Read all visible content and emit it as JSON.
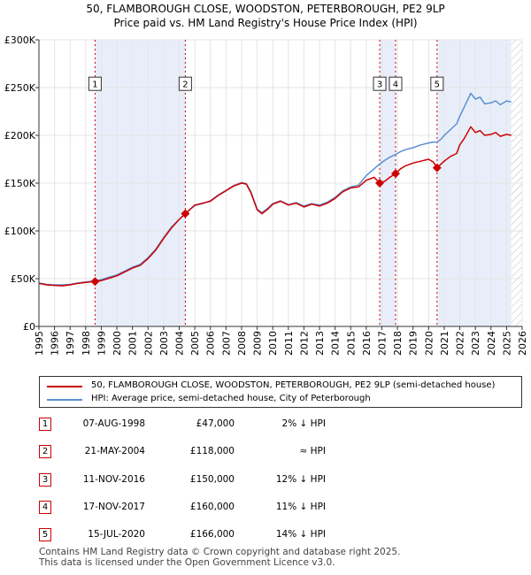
{
  "title_line1": "50, FLAMBOROUGH CLOSE, WOODSTON, PETERBOROUGH, PE2 9LP",
  "title_line2": "Price paid vs. HM Land Registry's House Price Index (HPI)",
  "chart_data": {
    "type": "line",
    "xlim": [
      1995,
      2026
    ],
    "ylim": [
      0,
      300000
    ],
    "y_ticks": [
      0,
      50000,
      100000,
      150000,
      200000,
      250000,
      300000
    ],
    "y_tick_labels": [
      "£0",
      "£50K",
      "£100K",
      "£150K",
      "£200K",
      "£250K",
      "£300K"
    ],
    "x_ticks": [
      1995,
      1996,
      1997,
      1998,
      1999,
      2000,
      2001,
      2002,
      2003,
      2004,
      2005,
      2006,
      2007,
      2008,
      2009,
      2010,
      2011,
      2012,
      2013,
      2014,
      2015,
      2016,
      2017,
      2018,
      2019,
      2020,
      2021,
      2022,
      2023,
      2024,
      2025,
      2026
    ],
    "x_tick_labels": [
      "1995",
      "1996",
      "1997",
      "1998",
      "1999",
      "2000",
      "2001",
      "2002",
      "2003",
      "2004",
      "2005",
      "2006",
      "2007",
      "2008",
      "2009",
      "2010",
      "2011",
      "2012",
      "2013",
      "2014",
      "2015",
      "2016",
      "2017",
      "2018",
      "2019",
      "2020",
      "2021",
      "2022",
      "2023",
      "2024",
      "2025",
      "2026"
    ],
    "colors": {
      "property": "#cc0000",
      "hpi": "#5b8fd4",
      "shade": "#e8eef9",
      "vline": "#cc0000"
    },
    "series": [
      {
        "name": "50, FLAMBOROUGH CLOSE, WOODSTON, PETERBOROUGH, PE2 9LP (semi-detached house)",
        "points": [
          [
            1995.0,
            45000
          ],
          [
            1995.5,
            43500
          ],
          [
            1996.0,
            43000
          ],
          [
            1996.5,
            42500
          ],
          [
            1997.0,
            43500
          ],
          [
            1997.5,
            45000
          ],
          [
            1998.0,
            46000
          ],
          [
            1998.6,
            47000
          ],
          [
            1999.0,
            48000
          ],
          [
            1999.5,
            50500
          ],
          [
            2000.0,
            53000
          ],
          [
            2000.5,
            57000
          ],
          [
            2001.0,
            61000
          ],
          [
            2001.5,
            64000
          ],
          [
            2002.0,
            71000
          ],
          [
            2002.5,
            80000
          ],
          [
            2003.0,
            92000
          ],
          [
            2003.5,
            103000
          ],
          [
            2004.0,
            112000
          ],
          [
            2004.39,
            118000
          ],
          [
            2004.8,
            124000
          ],
          [
            2005.0,
            127000
          ],
          [
            2005.5,
            129000
          ],
          [
            2006.0,
            131000
          ],
          [
            2006.5,
            137000
          ],
          [
            2007.0,
            142000
          ],
          [
            2007.5,
            147000
          ],
          [
            2008.0,
            150000
          ],
          [
            2008.3,
            149000
          ],
          [
            2008.6,
            140000
          ],
          [
            2009.0,
            122000
          ],
          [
            2009.3,
            118000
          ],
          [
            2009.7,
            123000
          ],
          [
            2010.0,
            128000
          ],
          [
            2010.5,
            131000
          ],
          [
            2011.0,
            127000
          ],
          [
            2011.5,
            129000
          ],
          [
            2012.0,
            125000
          ],
          [
            2012.5,
            128000
          ],
          [
            2013.0,
            126000
          ],
          [
            2013.5,
            129000
          ],
          [
            2014.0,
            134000
          ],
          [
            2014.5,
            141000
          ],
          [
            2015.0,
            145000
          ],
          [
            2015.5,
            146000
          ],
          [
            2016.0,
            153000
          ],
          [
            2016.5,
            156000
          ],
          [
            2016.86,
            150000
          ],
          [
            2017.2,
            152000
          ],
          [
            2017.5,
            156000
          ],
          [
            2017.88,
            160000
          ],
          [
            2018.2,
            165000
          ],
          [
            2018.5,
            168000
          ],
          [
            2019.0,
            171000
          ],
          [
            2019.5,
            173000
          ],
          [
            2020.0,
            175000
          ],
          [
            2020.3,
            172000
          ],
          [
            2020.54,
            166000
          ],
          [
            2020.8,
            170000
          ],
          [
            2021.0,
            173000
          ],
          [
            2021.4,
            178000
          ],
          [
            2021.8,
            181000
          ],
          [
            2022.0,
            190000
          ],
          [
            2022.3,
            197000
          ],
          [
            2022.7,
            209000
          ],
          [
            2023.0,
            203000
          ],
          [
            2023.3,
            205000
          ],
          [
            2023.6,
            200000
          ],
          [
            2024.0,
            201000
          ],
          [
            2024.3,
            203000
          ],
          [
            2024.6,
            199000
          ],
          [
            2025.0,
            201000
          ],
          [
            2025.3,
            200000
          ]
        ]
      },
      {
        "name": "HPI: Average price, semi-detached house, City of Peterborough",
        "points": [
          [
            1995.0,
            45500
          ],
          [
            1995.5,
            44000
          ],
          [
            1996.0,
            43500
          ],
          [
            1996.5,
            43500
          ],
          [
            1997.0,
            44000
          ],
          [
            1997.5,
            45500
          ],
          [
            1998.0,
            46500
          ],
          [
            1998.6,
            48000
          ],
          [
            1999.0,
            49000
          ],
          [
            1999.5,
            51500
          ],
          [
            2000.0,
            54000
          ],
          [
            2000.5,
            58000
          ],
          [
            2001.0,
            62000
          ],
          [
            2001.5,
            65000
          ],
          [
            2002.0,
            72000
          ],
          [
            2002.5,
            81000
          ],
          [
            2003.0,
            93000
          ],
          [
            2003.5,
            104000
          ],
          [
            2004.0,
            112000
          ],
          [
            2004.39,
            118000
          ],
          [
            2004.8,
            124000
          ],
          [
            2005.0,
            126500
          ],
          [
            2005.5,
            128500
          ],
          [
            2006.0,
            131500
          ],
          [
            2006.5,
            137500
          ],
          [
            2007.0,
            142500
          ],
          [
            2007.5,
            147500
          ],
          [
            2008.0,
            150500
          ],
          [
            2008.3,
            149500
          ],
          [
            2008.6,
            141000
          ],
          [
            2009.0,
            123000
          ],
          [
            2009.3,
            119000
          ],
          [
            2009.7,
            124000
          ],
          [
            2010.0,
            128500
          ],
          [
            2010.5,
            131500
          ],
          [
            2011.0,
            127500
          ],
          [
            2011.5,
            129500
          ],
          [
            2012.0,
            126000
          ],
          [
            2012.5,
            128500
          ],
          [
            2013.0,
            127000
          ],
          [
            2013.5,
            130000
          ],
          [
            2014.0,
            135000
          ],
          [
            2014.5,
            142000
          ],
          [
            2015.0,
            146000
          ],
          [
            2015.5,
            148000
          ],
          [
            2016.0,
            158000
          ],
          [
            2016.5,
            165000
          ],
          [
            2016.86,
            170000
          ],
          [
            2017.2,
            174000
          ],
          [
            2017.5,
            177000
          ],
          [
            2017.88,
            180000
          ],
          [
            2018.2,
            183000
          ],
          [
            2018.5,
            185000
          ],
          [
            2019.0,
            187000
          ],
          [
            2019.5,
            190000
          ],
          [
            2020.0,
            192000
          ],
          [
            2020.3,
            193000
          ],
          [
            2020.54,
            193000
          ],
          [
            2020.8,
            196000
          ],
          [
            2021.0,
            200000
          ],
          [
            2021.4,
            206000
          ],
          [
            2021.8,
            212000
          ],
          [
            2022.0,
            220000
          ],
          [
            2022.3,
            230000
          ],
          [
            2022.7,
            244000
          ],
          [
            2023.0,
            238000
          ],
          [
            2023.3,
            240000
          ],
          [
            2023.6,
            233000
          ],
          [
            2024.0,
            234000
          ],
          [
            2024.3,
            236000
          ],
          [
            2024.6,
            232000
          ],
          [
            2025.0,
            236000
          ],
          [
            2025.3,
            235000
          ]
        ]
      }
    ],
    "shaded_regions": [
      [
        1998.6,
        2004.39
      ],
      [
        2016.86,
        2017.88
      ],
      [
        2020.54,
        2025.3
      ]
    ],
    "future_hatch_from": 2025.3,
    "sales": [
      {
        "label": "1",
        "x": 1998.6,
        "price": 47000,
        "marker_y": 47000
      },
      {
        "label": "2",
        "x": 2004.39,
        "price": 118000,
        "marker_y": 118000
      },
      {
        "label": "3",
        "x": 2016.86,
        "price": 150000,
        "marker_y": 150000
      },
      {
        "label": "4",
        "x": 2017.88,
        "price": 160000,
        "marker_y": 160000
      },
      {
        "label": "5",
        "x": 2020.54,
        "price": 166000,
        "marker_y": 166000
      }
    ],
    "marker_label_y": 260000
  },
  "legend": {
    "property_label": "50, FLAMBOROUGH CLOSE, WOODSTON, PETERBOROUGH, PE2 9LP (semi-detached house)",
    "hpi_label": "HPI: Average price, semi-detached house, City of Peterborough"
  },
  "transactions": [
    {
      "num": "1",
      "date": "07-AUG-1998",
      "price": "£47,000",
      "hpi": "2% ↓ HPI"
    },
    {
      "num": "2",
      "date": "21-MAY-2004",
      "price": "£118,000",
      "hpi": "≈ HPI"
    },
    {
      "num": "3",
      "date": "11-NOV-2016",
      "price": "£150,000",
      "hpi": "12% ↓ HPI"
    },
    {
      "num": "4",
      "date": "17-NOV-2017",
      "price": "£160,000",
      "hpi": "11% ↓ HPI"
    },
    {
      "num": "5",
      "date": "15-JUL-2020",
      "price": "£166,000",
      "hpi": "14% ↓ HPI"
    }
  ],
  "footer": {
    "line1": "Contains HM Land Registry data © Crown copyright and database right 2025.",
    "line2": "This data is licensed under the Open Government Licence v3.0."
  }
}
